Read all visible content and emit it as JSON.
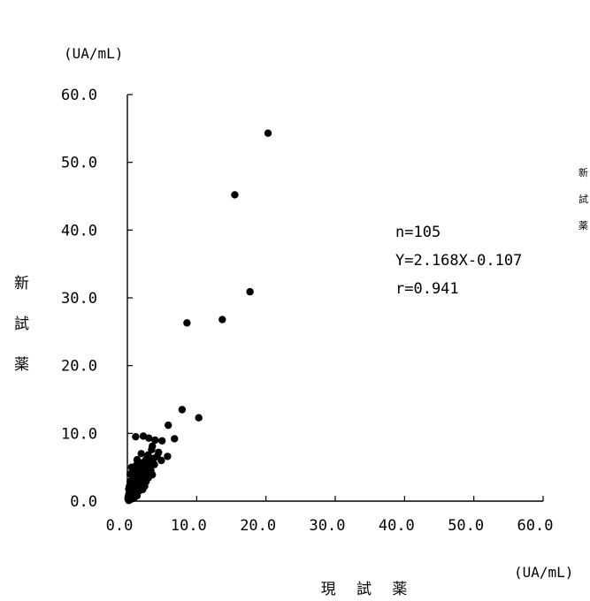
{
  "chart_data": {
    "type": "scatter",
    "title": "",
    "xlabel": "現 試 薬",
    "ylabel": "新 試 薬",
    "x_unit": "(UA/mL)",
    "y_unit": "(UA/mL)",
    "xlim": [
      0,
      60
    ],
    "ylim": [
      0,
      60
    ],
    "x_ticks": [
      "0.0",
      "10.0",
      "20.0",
      "30.0",
      "40.0",
      "50.0",
      "60.0"
    ],
    "y_ticks": [
      "0.0",
      "10.0",
      "20.0",
      "30.0",
      "40.0",
      "50.0",
      "60.0"
    ],
    "grid": false,
    "legend": "none",
    "annotations": [
      "n=105",
      "Y=2.168X-0.107",
      "r=0.941"
    ],
    "clipped_text": [
      "新",
      "試",
      "薬"
    ],
    "marker_color": "#000000",
    "points": [
      [
        20.3,
        54.3
      ],
      [
        15.5,
        45.2
      ],
      [
        17.7,
        30.9
      ],
      [
        13.7,
        26.8
      ],
      [
        8.6,
        26.3
      ],
      [
        7.9,
        13.5
      ],
      [
        10.3,
        12.3
      ],
      [
        5.9,
        11.2
      ],
      [
        1.2,
        9.5
      ],
      [
        2.3,
        9.6
      ],
      [
        3.1,
        9.3
      ],
      [
        4.0,
        9.0
      ],
      [
        5.0,
        8.9
      ],
      [
        6.8,
        9.2
      ],
      [
        3.6,
        8.1
      ],
      [
        4.5,
        7.2
      ],
      [
        2.0,
        7.0
      ],
      [
        3.0,
        6.8
      ],
      [
        5.8,
        6.6
      ],
      [
        1.4,
        6.1
      ],
      [
        2.6,
        6.0
      ],
      [
        3.8,
        6.3
      ],
      [
        4.9,
        6.0
      ],
      [
        0.6,
        5.0
      ],
      [
        1.3,
        5.3
      ],
      [
        1.9,
        5.6
      ],
      [
        2.5,
        5.2
      ],
      [
        3.2,
        5.7
      ],
      [
        2.8,
        4.8
      ],
      [
        1.0,
        4.6
      ],
      [
        1.6,
        4.4
      ],
      [
        2.2,
        4.3
      ],
      [
        3.4,
        4.5
      ],
      [
        0.4,
        4.0
      ],
      [
        0.9,
        3.8
      ],
      [
        1.5,
        3.7
      ],
      [
        2.0,
        3.5
      ],
      [
        2.6,
        3.9
      ],
      [
        3.1,
        3.6
      ],
      [
        0.7,
        3.2
      ],
      [
        1.2,
        3.1
      ],
      [
        1.8,
        3.0
      ],
      [
        2.4,
        3.2
      ],
      [
        3.0,
        3.4
      ],
      [
        3.6,
        3.9
      ],
      [
        0.5,
        2.7
      ],
      [
        1.0,
        2.6
      ],
      [
        1.5,
        2.8
      ],
      [
        2.1,
        2.5
      ],
      [
        2.7,
        2.9
      ],
      [
        0.3,
        2.2
      ],
      [
        0.8,
        2.1
      ],
      [
        1.3,
        2.3
      ],
      [
        1.9,
        2.0
      ],
      [
        2.5,
        2.2
      ],
      [
        0.2,
        1.8
      ],
      [
        0.6,
        1.7
      ],
      [
        1.1,
        1.6
      ],
      [
        1.6,
        1.9
      ],
      [
        2.2,
        1.7
      ],
      [
        0.3,
        1.3
      ],
      [
        0.7,
        1.4
      ],
      [
        1.2,
        1.2
      ],
      [
        1.7,
        1.5
      ],
      [
        0.2,
        1.0
      ],
      [
        0.5,
        0.9
      ],
      [
        0.9,
        1.1
      ],
      [
        1.4,
        0.8
      ],
      [
        0.1,
        0.6
      ],
      [
        0.4,
        0.5
      ],
      [
        0.7,
        0.7
      ],
      [
        1.0,
        0.5
      ],
      [
        0.1,
        0.3
      ],
      [
        0.3,
        0.2
      ],
      [
        0.6,
        0.3
      ],
      [
        0.2,
        0.1
      ],
      [
        0.4,
        0.8
      ],
      [
        0.8,
        0.4
      ],
      [
        1.1,
        2.0
      ],
      [
        1.7,
        2.6
      ],
      [
        2.3,
        3.7
      ],
      [
        2.9,
        4.1
      ],
      [
        3.3,
        5.0
      ],
      [
        3.9,
        5.4
      ],
      [
        4.3,
        6.6
      ],
      [
        1.4,
        4.9
      ],
      [
        0.9,
        3.4
      ],
      [
        1.9,
        4.1
      ],
      [
        2.4,
        4.6
      ],
      [
        0.5,
        1.5
      ],
      [
        0.8,
        2.4
      ],
      [
        1.3,
        2.9
      ],
      [
        1.8,
        3.3
      ],
      [
        0.3,
        1.1
      ],
      [
        0.6,
        2.0
      ],
      [
        1.0,
        1.9
      ],
      [
        1.5,
        2.2
      ],
      [
        2.0,
        2.9
      ],
      [
        2.6,
        3.3
      ],
      [
        0.4,
        2.9
      ],
      [
        0.9,
        4.2
      ],
      [
        1.6,
        5.8
      ],
      [
        2.1,
        5.4
      ],
      [
        2.9,
        6.4
      ],
      [
        3.5,
        7.6
      ]
    ]
  }
}
